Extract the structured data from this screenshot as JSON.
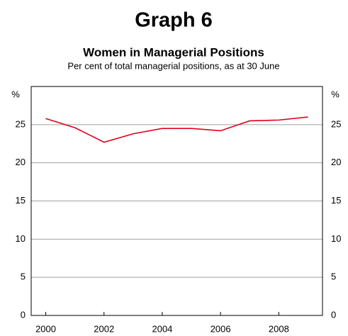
{
  "chart_data": {
    "type": "line",
    "title": "Graph 6",
    "subtitle": "Women in Managerial Positions",
    "description": "Per cent of total managerial positions, as at 30 June",
    "y_unit": "%",
    "x": [
      2000,
      2001,
      2002,
      2003,
      2004,
      2005,
      2006,
      2007,
      2008,
      2009
    ],
    "series": [
      {
        "color": "#e0001b",
        "values": [
          25.8,
          24.6,
          22.7,
          23.8,
          24.5,
          24.5,
          24.2,
          25.5,
          25.6,
          26.0
        ]
      }
    ],
    "xlim": [
      1999.5,
      2009.5
    ],
    "xticks": [
      2000,
      2002,
      2004,
      2006,
      2008
    ],
    "ylim": [
      0,
      30
    ],
    "yticks": [
      0,
      5,
      10,
      15,
      20,
      25
    ],
    "y2lim": [
      0,
      30
    ],
    "y2ticks": [
      0,
      5,
      10,
      15,
      20,
      25
    ],
    "grid": true
  }
}
